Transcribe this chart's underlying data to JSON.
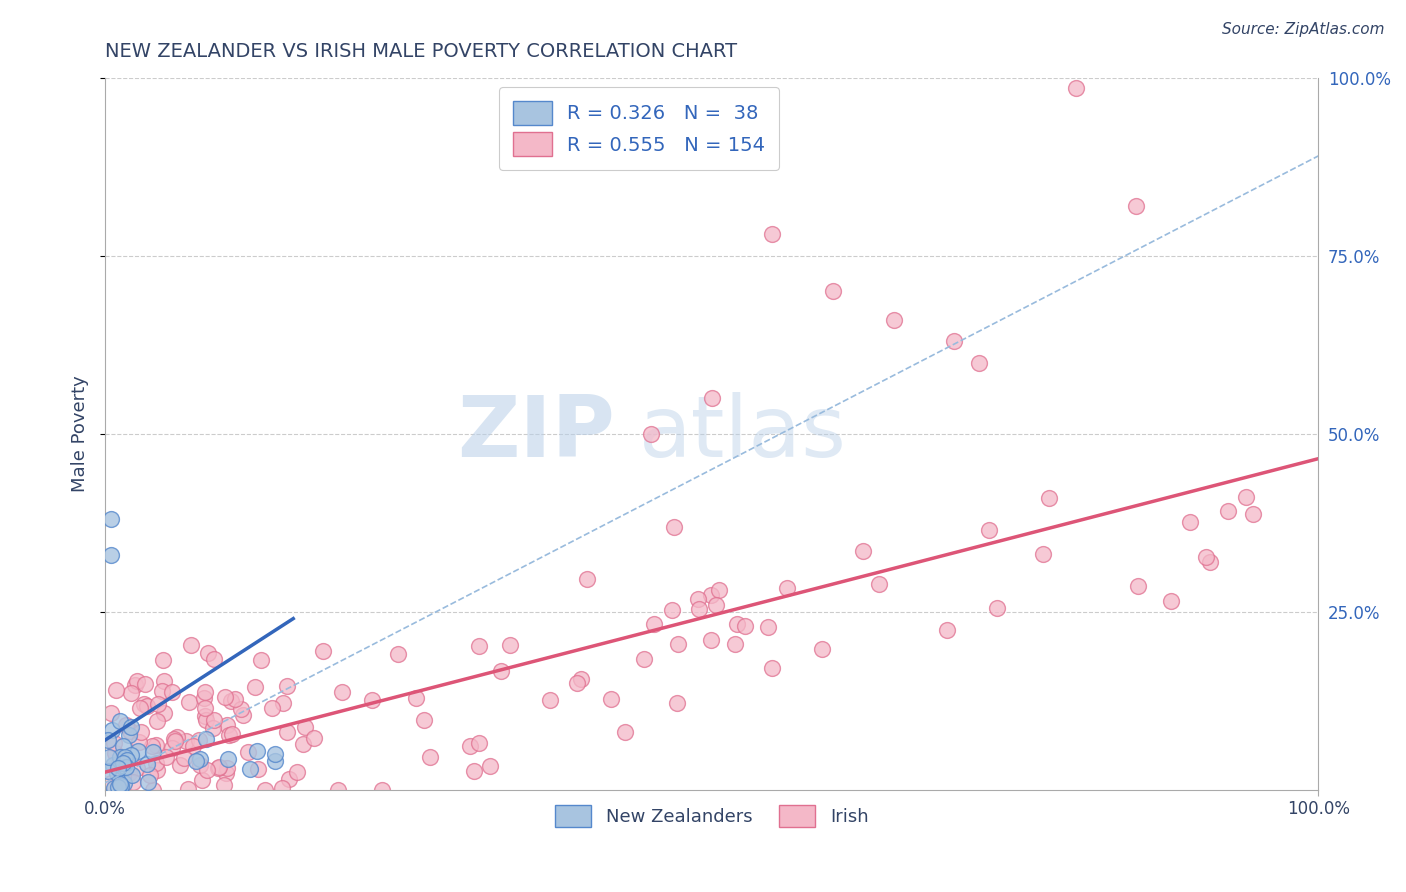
{
  "title": "NEW ZEALANDER VS IRISH MALE POVERTY CORRELATION CHART",
  "source": "Source: ZipAtlas.com",
  "ylabel": "Male Poverty",
  "xlim": [
    0,
    1.0
  ],
  "ylim": [
    0,
    1.0
  ],
  "watermark_zip": "ZIP",
  "watermark_atlas": "atlas",
  "nz_color": "#a8c4e0",
  "nz_edge_color": "#5588cc",
  "irish_color": "#f4b8c8",
  "irish_edge_color": "#e07090",
  "nz_line_color": "#3366bb",
  "irish_line_color": "#dd5577",
  "dashed_line_color": "#99bbdd",
  "nz_R": 0.326,
  "nz_N": 38,
  "irish_R": 0.555,
  "irish_N": 154,
  "background_color": "#ffffff",
  "grid_color": "#cccccc",
  "title_color": "#334466",
  "axis_label_color": "#334466",
  "legend_color": "#3366bb"
}
